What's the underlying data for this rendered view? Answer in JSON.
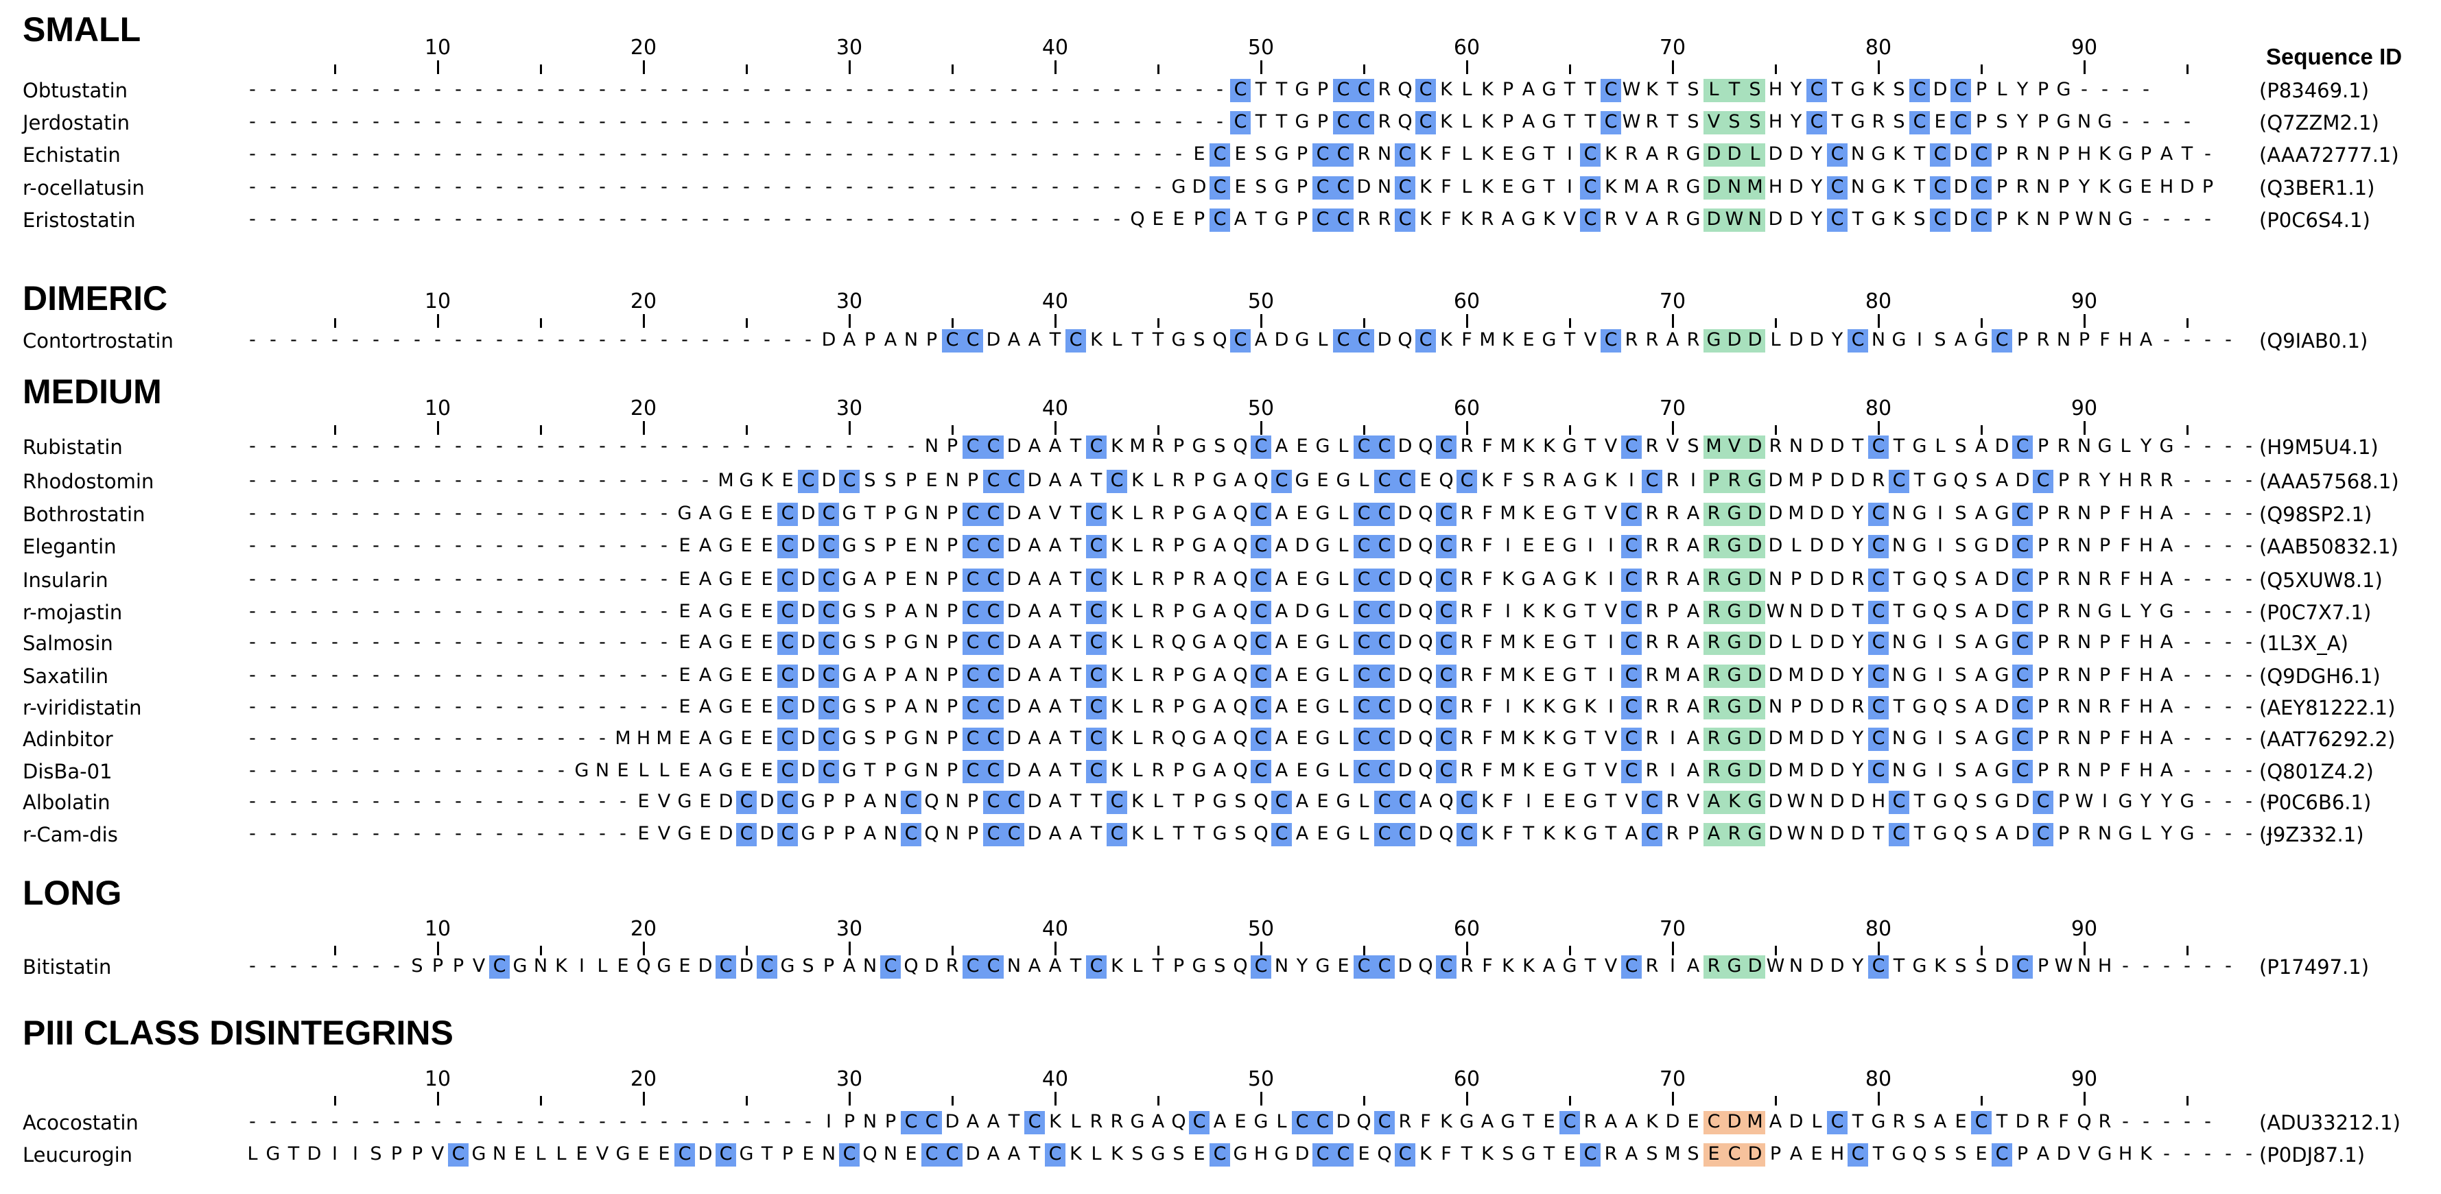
{
  "figure": {
    "seq_id_header": "Sequence ID",
    "colors": {
      "cysteine": "#6e9ef2",
      "rgd_motif": "#a8e0bd",
      "ecd_motif": "#f6c29c"
    },
    "ruler_labels": [
      "10",
      "20",
      "30",
      "40",
      "50",
      "60",
      "70",
      "80",
      "90"
    ],
    "alignment_width": 97
  },
  "sections": [
    {
      "title": "SMALL",
      "rows": [
        {
          "name": "Obtustatin",
          "seq": "------------------------------------------------CTTGPCCRQCKLKPAGTTCWKTSLTSHYCTGKSCDCPLYPG----",
          "id": "(P83469.1)",
          "motif": [
            72,
            74
          ],
          "motif_color": "rgd_motif"
        },
        {
          "name": "Jerdostatin",
          "seq": "------------------------------------------------CTTGPCCRQCKLKPAGTTCWRTSVSSHYCTGRSCECPSYPGNG----",
          "id": "(Q7ZZM2.1)",
          "motif": [
            72,
            74
          ],
          "motif_color": "rgd_motif"
        },
        {
          "name": "Echistatin",
          "seq": "----------------------------------------------ECESGPCCRNCKFLKEGTICKRARGDDLDDYCNGKTCDCPRNPHKGPAT-",
          "id": "(AAA72777.1)",
          "motif": [
            72,
            74
          ],
          "motif_color": "rgd_motif"
        },
        {
          "name": "r-ocellatusin",
          "seq": "---------------------------------------------GDCESGPCCDNCKFLKEGTICKMARGDNMHDYCNGKTCDCPRNPYKGEHDP",
          "id": "(Q3BER1.1)",
          "motif": [
            72,
            74
          ],
          "motif_color": "rgd_motif"
        },
        {
          "name": "Eristostatin",
          "seq": "-------------------------------------------QEEPCATGPCCRRCKFKRAGKVCRVARGDWNDDYCTGKSCDCPKNPWNG----",
          "id": "(P0C6S4.1)",
          "motif": [
            72,
            74
          ],
          "motif_color": "rgd_motif"
        }
      ]
    },
    {
      "title": "DIMERIC",
      "rows": [
        {
          "name": "Contortrostatin",
          "seq": "----------------------------DAPANPCCDAATCKLTTGSQCADGLCCDQCKFMKEGTVCRRARGDDLDDYCNGISAGCPRNPFHA----",
          "id": "(Q9IAB0.1)",
          "motif": [
            72,
            74
          ],
          "motif_color": "rgd_motif"
        }
      ]
    },
    {
      "title": "MEDIUM",
      "rows": [
        {
          "name": "Rubistatin",
          "seq": "---------------------------------NPCCDAATCKMRPGSQCAEGLCCDQCRFMKKGTVCRVSMVDRNDDTCTGLSADCPRNGLYG----",
          "id": "(H9M5U4.1)",
          "motif": [
            72,
            74
          ],
          "motif_color": "rgd_motif"
        },
        {
          "name": "Rhodostomin",
          "seq": "-----------------------MGKECDCSSPENPCCDAATCKLRPGAQCGEGLCCEQCKFSRAGKICRIPRGDMPDDRCTGQSADCPRYHRR----",
          "id": "(AAA57568.1)",
          "motif": [
            72,
            74
          ],
          "motif_color": "rgd_motif"
        },
        {
          "name": "Bothrostatin",
          "seq": "---------------------GAGEECDCGTPGNPCCDAVTCKLRPGAQCAEGLCCDQCRFMKEGTVCRRARGDDMDDYCNGISAGCPRNPFHA----",
          "id": "(Q98SP2.1)",
          "motif": [
            72,
            74
          ],
          "motif_color": "rgd_motif"
        },
        {
          "name": "Elegantin",
          "seq": "---------------------EAGEECDCGSPENPCCDAATCKLRPGAQCADGLCCDQCRFIEEGIICRRARGDDLDDYCNGISGDCPRNPFHA----",
          "id": "(AAB50832.1)",
          "motif": [
            72,
            74
          ],
          "motif_color": "rgd_motif"
        },
        {
          "name": "Insularin",
          "seq": "---------------------EAGEECDCGAPENPCCDAATCKLRPRAQCAEGLCCDQCRFKGAGKICRRARGDNPDDRCTGQSADCPRNRFHA----",
          "id": "(Q5XUW8.1)",
          "motif": [
            72,
            74
          ],
          "motif_color": "rgd_motif"
        },
        {
          "name": "r-mojastin",
          "seq": "---------------------EAGEECDCGSPANPCCDAATCKLRPGAQCADGLCCDQCRFIKKGTVCRPARGDWNDDTCTGQSADCPRNGLYG----",
          "id": "(P0C7X7.1)",
          "motif": [
            72,
            74
          ],
          "motif_color": "rgd_motif"
        },
        {
          "name": "Salmosin",
          "seq": "---------------------EAGEECDCGSPGNPCCDAATCKLRQGAQCAEGLCCDQCRFMKEGTICRRARGDDLDDYCNGISAGCPRNPFHA----",
          "id": "(1L3X_A)",
          "motif": [
            72,
            74
          ],
          "motif_color": "rgd_motif"
        },
        {
          "name": "Saxatilin",
          "seq": "---------------------EAGEECDCGAPANPCCDAATCKLRPGAQCAEGLCCDQCRFMKEGTICRMARGDDMDDYCNGISAGCPRNPFHA----",
          "id": "(Q9DGH6.1)",
          "motif": [
            72,
            74
          ],
          "motif_color": "rgd_motif"
        },
        {
          "name": "r-viridistatin",
          "seq": "---------------------EAGEECDCGSPANPCCDAATCKLRPGAQCAEGLCCDQCRFIKKGKICRRARGDNPDDRCTGQSADCPRNRFHA----",
          "id": "(AEY81222.1)",
          "motif": [
            72,
            74
          ],
          "motif_color": "rgd_motif"
        },
        {
          "name": "Adinbitor",
          "seq": "------------------MHMEAGEECDCGSPGNPCCDAATCKLRQGAQCAEGLCCDQCRFMKKGTVCRIARGDDMDDYCNGISAGCPRNPFHA----",
          "id": "(AAT76292.2)",
          "motif": [
            72,
            74
          ],
          "motif_color": "rgd_motif"
        },
        {
          "name": "DisBa-01",
          "seq": "----------------GNELLEAGEECDCGTPGNPCCDAATCKLRPGAQCAEGLCCDQCRFMKEGTVCRIARGDDMDDYCNGISAGCPRNPFHA----",
          "id": "(Q801Z4.2)",
          "motif": [
            72,
            74
          ],
          "motif_color": "rgd_motif"
        },
        {
          "name": "Albolatin",
          "seq": "-------------------EVGEDCDCGPPANCQNPCCDATTCKLTPGSQCAEGLCCAQCKFIEEGTVCRVAKGDWNDDHCTGQSGDCPWIGYYG----",
          "id": "(P0C6B6.1)",
          "motif": [
            72,
            74
          ],
          "motif_color": "rgd_motif"
        },
        {
          "name": "r-Cam-dis",
          "seq": "-------------------EVGEDCDCGPPANCQNPCCDAATCKLTTGSQCAEGLCCDQCKFTKKGTACRPARGDWNDDTCTGQSADCPRNGLYG----",
          "id": "(J9Z332.1)",
          "motif": [
            72,
            74
          ],
          "motif_color": "rgd_motif"
        }
      ]
    },
    {
      "title": "LONG",
      "rows": [
        {
          "name": "Bitistatin",
          "seq": "--------SPPVCGNKILEQGEDCDCGSPANCQDRCCNAATCKLTPGSQCNYGECCDQCRFKKAGTVCRIARGDWNDDYCTGKSSDCPWNH------",
          "id": "(P17497.1)",
          "motif": [
            72,
            74
          ],
          "motif_color": "rgd_motif"
        }
      ]
    },
    {
      "title": "PIII CLASS DISINTEGRINS",
      "rows": [
        {
          "name": "Acocostatin",
          "seq": "----------------------------IPNPCCDAATCKLRRGAQCAEGLCCDQCRFKGAGTECRAAKDECDMADLCTGRSAECTDRFQR-----",
          "id": "(ADU33212.1)",
          "motif": [
            72,
            74
          ],
          "motif_color": "ecd_motif"
        },
        {
          "name": "Leucurogin",
          "seq": "LGTDIISPPVCGNELLEVGEECDCGTPENCQNECCDAATCKLKSGSECGHGDCCEQCKFTKSGTECRASMSECDPAEHCTGQSSECPADVGHK-----",
          "id": "(P0DJ87.1)",
          "motif": [
            72,
            74
          ],
          "motif_color": "ecd_motif"
        }
      ]
    }
  ]
}
